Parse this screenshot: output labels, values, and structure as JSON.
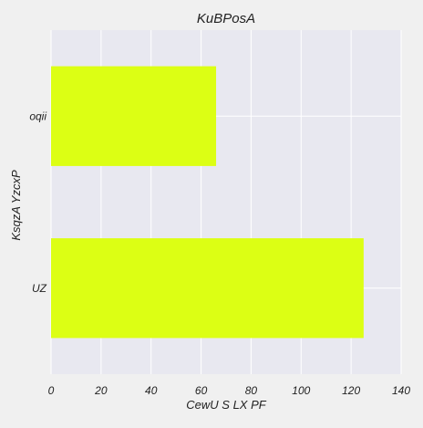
{
  "colors": {
    "figure_bg": "#f0f0f0",
    "plot_bg": "#e8e8f0",
    "grid": "#ffffff",
    "bar": "#dcff14"
  },
  "chart_data": {
    "type": "bar",
    "orientation": "horizontal",
    "title": "KuBPosA",
    "xlabel": "CewU S LX PF",
    "ylabel": "KsqzA YzcxP",
    "categories": [
      "UZ",
      "oqii"
    ],
    "values": [
      125,
      66
    ],
    "xlim": [
      0,
      140
    ],
    "xticks": [
      0,
      20,
      40,
      60,
      80,
      100,
      120,
      140
    ],
    "grid": true,
    "legend": "none"
  }
}
